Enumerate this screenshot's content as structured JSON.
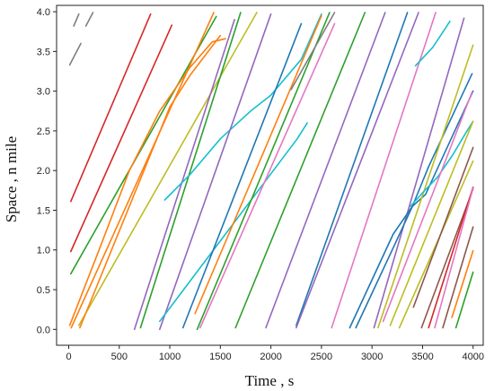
{
  "chart_data": {
    "type": "line",
    "title": "",
    "xlabel": "Time ,   s",
    "ylabel": "Space ,   n mile",
    "xlim": [
      -120,
      4100
    ],
    "ylim": [
      -0.2,
      4.08
    ],
    "x_ticks": [
      0,
      500,
      1000,
      1500,
      2000,
      2500,
      3000,
      3500,
      4000
    ],
    "y_ticks": [
      0.0,
      0.5,
      1.0,
      1.5,
      2.0,
      2.5,
      3.0,
      3.5,
      4.0
    ],
    "x_tick_labels": [
      "0",
      "500",
      "1000",
      "1500",
      "2000",
      "2500",
      "3000",
      "3500",
      "4000"
    ],
    "y_tick_labels": [
      "0.0",
      "0.5",
      "1.0",
      "1.5",
      "2.0",
      "2.5",
      "3.0",
      "3.5",
      "4.0"
    ],
    "grid": false,
    "legend": "none",
    "series": [
      {
        "color": "#7f7f7f",
        "points": [
          [
            50,
            3.82
          ],
          [
            100,
            3.97
          ]
        ]
      },
      {
        "color": "#7f7f7f",
        "points": [
          [
            170,
            3.82
          ],
          [
            240,
            3.99
          ]
        ]
      },
      {
        "color": "#7f7f7f",
        "points": [
          [
            10,
            3.33
          ],
          [
            120,
            3.6
          ]
        ]
      },
      {
        "color": "#d62728",
        "points": [
          [
            20,
            1.61
          ],
          [
            810,
            3.97
          ]
        ]
      },
      {
        "color": "#d62728",
        "points": [
          [
            20,
            0.98
          ],
          [
            1020,
            3.83
          ]
        ]
      },
      {
        "color": "#2ca02c",
        "points": [
          [
            20,
            0.7
          ],
          [
            1460,
            3.94
          ]
        ]
      },
      {
        "color": "#ff7f0e",
        "points": [
          [
            10,
            0.05
          ],
          [
            300,
            1.0
          ],
          [
            600,
            2.0
          ],
          [
            900,
            2.75
          ],
          [
            1200,
            3.3
          ],
          [
            1420,
            3.62
          ],
          [
            1550,
            3.66
          ]
        ]
      },
      {
        "color": "#ff7f0e",
        "points": [
          [
            25,
            0.02
          ],
          [
            1435,
            3.99
          ]
        ]
      },
      {
        "color": "#bcbd22",
        "points": [
          [
            100,
            0.05
          ],
          [
            1860,
            3.99
          ]
        ]
      },
      {
        "color": "#ff7f0e",
        "points": [
          [
            110,
            0.02
          ],
          [
            1000,
            2.8
          ],
          [
            1200,
            3.2
          ],
          [
            1500,
            3.7
          ]
        ]
      },
      {
        "color": "#9467bd",
        "points": [
          [
            650,
            0.0
          ],
          [
            1640,
            3.9
          ]
        ]
      },
      {
        "color": "#2ca02c",
        "points": [
          [
            710,
            0.02
          ],
          [
            1700,
            3.99
          ]
        ]
      },
      {
        "color": "#17becf",
        "points": [
          [
            950,
            1.63
          ],
          [
            1200,
            1.95
          ],
          [
            1500,
            2.4
          ],
          [
            1800,
            2.75
          ],
          [
            2000,
            2.95
          ],
          [
            2300,
            3.4
          ],
          [
            2500,
            3.97
          ]
        ]
      },
      {
        "color": "#9467bd",
        "points": [
          [
            900,
            0.0
          ],
          [
            2000,
            3.97
          ]
        ]
      },
      {
        "color": "#17becf",
        "points": [
          [
            900,
            0.1
          ],
          [
            2260,
            2.4
          ],
          [
            2360,
            2.6
          ]
        ]
      },
      {
        "color": "#1f77b4",
        "points": [
          [
            1130,
            0.02
          ],
          [
            2300,
            3.85
          ]
        ]
      },
      {
        "color": "#ff7f0e",
        "points": [
          [
            1250,
            0.2
          ],
          [
            2500,
            3.95
          ]
        ]
      },
      {
        "color": "#2ca02c",
        "points": [
          [
            1270,
            0.0
          ],
          [
            2580,
            3.99
          ]
        ]
      },
      {
        "color": "#e377c2",
        "points": [
          [
            1300,
            0.02
          ],
          [
            2630,
            3.85
          ]
        ]
      },
      {
        "color": "#7f7f7f",
        "points": [
          [
            2200,
            3.02
          ],
          [
            2630,
            3.99
          ]
        ]
      },
      {
        "color": "#2ca02c",
        "points": [
          [
            1650,
            0.02
          ],
          [
            2930,
            3.99
          ]
        ]
      },
      {
        "color": "#9467bd",
        "points": [
          [
            1950,
            0.02
          ],
          [
            3130,
            3.99
          ]
        ]
      },
      {
        "color": "#1f77b4",
        "points": [
          [
            2250,
            0.05
          ],
          [
            3350,
            3.99
          ]
        ]
      },
      {
        "color": "#9467bd",
        "points": [
          [
            2250,
            0.02
          ],
          [
            3460,
            3.99
          ]
        ]
      },
      {
        "color": "#e377c2",
        "points": [
          [
            2600,
            0.02
          ],
          [
            3630,
            3.99
          ]
        ]
      },
      {
        "color": "#17becf",
        "points": [
          [
            3430,
            3.32
          ],
          [
            3600,
            3.55
          ],
          [
            3720,
            3.78
          ],
          [
            3770,
            3.88
          ]
        ]
      },
      {
        "color": "#9467bd",
        "points": [
          [
            3020,
            0.02
          ],
          [
            3910,
            3.92
          ]
        ]
      },
      {
        "color": "#1f77b4",
        "points": [
          [
            2780,
            0.02
          ],
          [
            3210,
            1.2
          ],
          [
            3400,
            1.55
          ],
          [
            3560,
            2.05
          ],
          [
            3990,
            3.22
          ]
        ]
      },
      {
        "color": "#1f77b4",
        "points": [
          [
            2840,
            0.02
          ],
          [
            3200,
            1.0
          ],
          [
            3400,
            1.55
          ],
          [
            3530,
            1.7
          ],
          [
            4000,
            3.0
          ]
        ]
      },
      {
        "color": "#bcbd22",
        "points": [
          [
            3060,
            0.02
          ],
          [
            4000,
            3.58
          ]
        ]
      },
      {
        "color": "#17becf",
        "points": [
          [
            3380,
            1.55
          ],
          [
            3500,
            1.72
          ],
          [
            3650,
            1.92
          ],
          [
            3800,
            2.2
          ],
          [
            3930,
            2.48
          ],
          [
            4000,
            2.62
          ]
        ]
      },
      {
        "color": "#e377c2",
        "points": [
          [
            3110,
            0.1
          ],
          [
            3990,
            2.99
          ]
        ]
      },
      {
        "color": "#bcbd22",
        "points": [
          [
            3180,
            0.05
          ],
          [
            4000,
            2.62
          ]
        ]
      },
      {
        "color": "#bcbd22",
        "points": [
          [
            3270,
            0.02
          ],
          [
            4000,
            2.12
          ]
        ]
      },
      {
        "color": "#8c564b",
        "points": [
          [
            3410,
            0.28
          ],
          [
            4000,
            2.29
          ]
        ]
      },
      {
        "color": "#8c564b",
        "points": [
          [
            3490,
            0.02
          ],
          [
            4000,
            1.77
          ]
        ]
      },
      {
        "color": "#d62728",
        "points": [
          [
            3560,
            0.02
          ],
          [
            4000,
            1.79
          ]
        ]
      },
      {
        "color": "#e377c2",
        "points": [
          [
            3620,
            0.02
          ],
          [
            4000,
            1.78
          ]
        ]
      },
      {
        "color": "#8c564b",
        "points": [
          [
            3700,
            0.02
          ],
          [
            4000,
            1.29
          ]
        ]
      },
      {
        "color": "#ff7f0e",
        "points": [
          [
            3790,
            0.15
          ],
          [
            4000,
            0.99
          ]
        ]
      },
      {
        "color": "#2ca02c",
        "points": [
          [
            3830,
            0.02
          ],
          [
            4000,
            0.72
          ]
        ]
      }
    ]
  }
}
